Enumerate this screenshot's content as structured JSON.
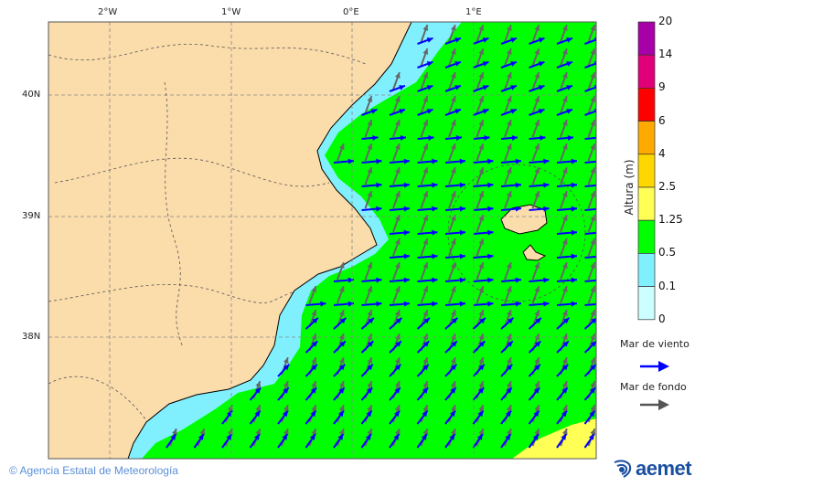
{
  "map": {
    "lon_labels": [
      "2°W",
      "1°W",
      "0°E",
      "1°E"
    ],
    "lat_labels": [
      "40N",
      "39N",
      "38N"
    ],
    "colors": {
      "land": "#fbdcab",
      "sea_0_0.1": "#ccffff",
      "sea_0.1_0.5": "#80f0ff",
      "sea_0.5_1.25": "#00ff00",
      "sea_1.25_2.5": "#ffff55",
      "wind_sea": "#0000ff",
      "swell": "#666666"
    }
  },
  "legend": {
    "title": "Altura (m)",
    "levels": [
      "20",
      "14",
      "9",
      "6",
      "4",
      "2.5",
      "1.25",
      "0.5",
      "0.1",
      "0"
    ],
    "bins": [
      {
        "color": "#a800a8"
      },
      {
        "color": "#e0007a"
      },
      {
        "color": "#ff0000"
      },
      {
        "color": "#ffaa00"
      },
      {
        "color": "#ffd700"
      },
      {
        "color": "#ffff55"
      },
      {
        "color": "#00ff00"
      },
      {
        "color": "#80f0ff"
      },
      {
        "color": "#ccffff"
      }
    ],
    "wind_sea_label": "Mar de viento",
    "swell_label": "Mar de fondo"
  },
  "footer": {
    "copyright": "© Agencia Estatal de Meteorología",
    "logo": "aemet"
  }
}
